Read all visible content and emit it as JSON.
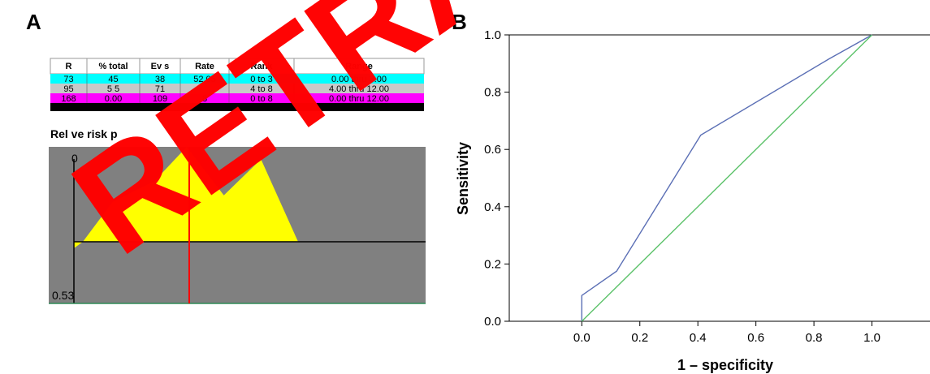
{
  "panels": {
    "a_label": "A",
    "b_label": "B"
  },
  "watermark": {
    "text": "RETRACTED",
    "color": "#ff0000"
  },
  "chart_data": [
    {
      "type": "table",
      "columns": [
        "Records",
        "% total",
        "Events",
        "Rate",
        "Rank",
        "Range"
      ],
      "column_headers_visible": [
        "R",
        "% total",
        "Ev   s",
        "Rate",
        "Rank",
        "Range"
      ],
      "rows": [
        {
          "cells": [
            "73",
            "45",
            "38",
            "52.05",
            "0 to 3",
            "0.00 thru 3.00"
          ],
          "color": "#00ffff"
        },
        {
          "cells": [
            "95",
            "5  5",
            "71",
            "",
            "4 to 8",
            "4.00 thru 12.00"
          ],
          "color": "#c8c8c8"
        },
        {
          "cells": [
            "168",
            "0.00",
            "109",
            "  8",
            "0 to 8",
            "0.00 thru 12.00"
          ],
          "color": "#ff00ff"
        }
      ]
    },
    {
      "type": "area",
      "title": "Rel   ve risk p",
      "y_top_label": "0",
      "y_bottom_label": "0.53",
      "fill_color": "#ffff00",
      "background_color": "#808080",
      "cut_line_color": "#ff0000",
      "profile": [
        {
          "x": 0.0,
          "y": 0.0
        },
        {
          "x": 0.12,
          "y": 0.42
        },
        {
          "x": 0.29,
          "y": 0.64
        },
        {
          "x": 0.42,
          "y": 1.0
        },
        {
          "x": 0.57,
          "y": 0.49
        },
        {
          "x": 0.72,
          "y": 0.87
        },
        {
          "x": 0.87,
          "y": 0.0
        }
      ],
      "cut_x": 0.43
    },
    {
      "type": "line",
      "xlabel": "1 – specificity",
      "ylabel": "Sensitivity",
      "xlim": [
        -0.25,
        1.2
      ],
      "ylim": [
        0.0,
        1.0
      ],
      "x_ticks": [
        "0.0",
        "0.2",
        "0.4",
        "0.6",
        "0.8",
        "1.0"
      ],
      "y_ticks": [
        "0.0",
        "0.2",
        "0.4",
        "0.6",
        "0.8",
        "1.0"
      ],
      "grid": false,
      "series": [
        {
          "color": "#5b6fb5",
          "points": [
            [
              0.0,
              0.0
            ],
            [
              0.0,
              0.09
            ],
            [
              0.12,
              0.175
            ],
            [
              0.41,
              0.65
            ],
            [
              0.85,
              0.915
            ],
            [
              1.0,
              1.0
            ]
          ]
        },
        {
          "color": "#5cc26a",
          "points": [
            [
              0.0,
              0.0
            ],
            [
              1.0,
              1.0
            ]
          ]
        }
      ]
    }
  ]
}
